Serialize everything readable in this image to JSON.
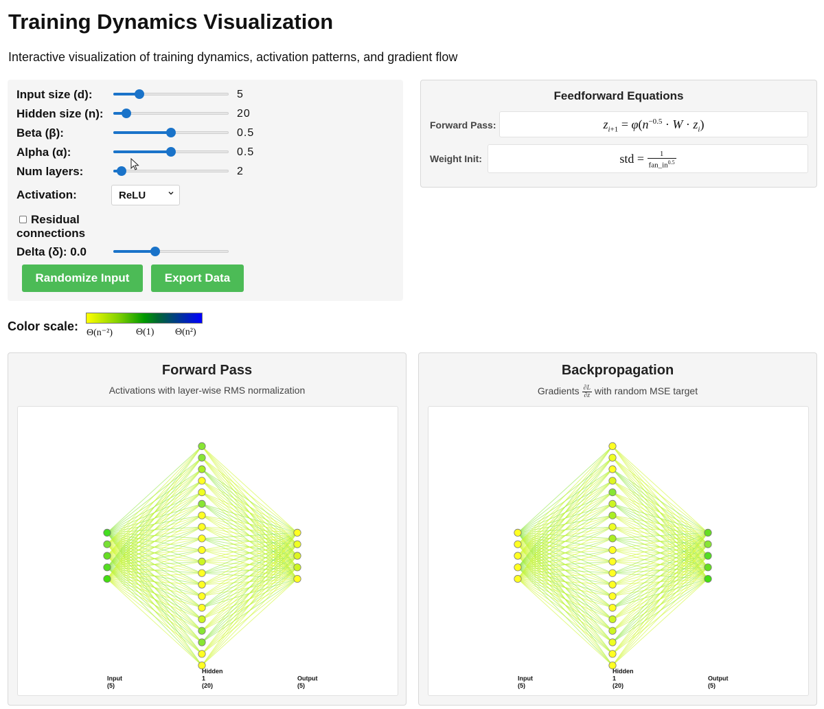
{
  "title": "Training Dynamics Visualization",
  "subtitle": "Interactive visualization of training dynamics, activation patterns, and gradient flow",
  "controls": {
    "sliders": [
      {
        "label": "Input size (d):",
        "value": "5",
        "fraction": 0.2
      },
      {
        "label": "Hidden size (n):",
        "value": "20",
        "fraction": 0.08
      },
      {
        "label": "Beta (β):",
        "value": "0.5",
        "fraction": 0.5
      },
      {
        "label": "Alpha (α):",
        "value": "0.5",
        "fraction": 0.5
      },
      {
        "label": "Num layers:",
        "value": "2",
        "fraction": 0.03
      }
    ],
    "activation_label": "Activation:",
    "activation_value": "ReLU",
    "residual_label": "Residual connections",
    "residual_checked": false,
    "delta_label": "Delta (δ): 0.0",
    "delta_fraction": 0.35,
    "randomize_button": "Randomize Input",
    "export_button": "Export Data"
  },
  "equations": {
    "title": "Feedforward Equations",
    "forward_label": "Forward Pass:",
    "weight_label": "Weight Init:"
  },
  "color_scale": {
    "label": "Color scale:",
    "ticks": [
      "Θ(n⁻²)",
      "Θ(1)",
      "Θ(n²)"
    ],
    "colors": [
      "#ffff00",
      "#009900",
      "#0000ff"
    ]
  },
  "forward_panel": {
    "title": "Forward Pass",
    "subtitle": "Activations with layer-wise RMS normalization",
    "layers": [
      {
        "label": "Input",
        "count_label": "(5)",
        "count": 5,
        "colors": [
          "#44dd22",
          "#77e033",
          "#66dd22",
          "#55dd22",
          "#44dd11"
        ]
      },
      {
        "label": "Hidden",
        "sub_label": "1",
        "count_label": "(20)",
        "count": 20,
        "colors": [
          "#88e533",
          "#88e533",
          "#aaee22",
          "#ffff22",
          "#eeff22",
          "#88e533",
          "#ffff22",
          "#ffff22",
          "#ffff22",
          "#ffff22",
          "#ccf522",
          "#ffff22",
          "#ffff22",
          "#ffff22",
          "#ffff22",
          "#ccf522",
          "#88e533",
          "#88e533",
          "#ffff22",
          "#ffff22"
        ]
      },
      {
        "label": "Output",
        "count_label": "(5)",
        "count": 5,
        "colors": [
          "#ffff22",
          "#eeff22",
          "#ddf522",
          "#ccf522",
          "#ffff22"
        ]
      }
    ]
  },
  "backward_panel": {
    "title": "Backpropagation",
    "subtitle_prefix": "Gradients",
    "subtitle_suffix": "with random MSE target",
    "layers": [
      {
        "label": "Input",
        "count_label": "(5)",
        "count": 5,
        "colors": [
          "#ffff22",
          "#ffff22",
          "#ffff22",
          "#ffff22",
          "#ffff22"
        ]
      },
      {
        "label": "Hidden",
        "sub_label": "1",
        "count_label": "(20)",
        "count": 20,
        "colors": [
          "#ffff22",
          "#eeff22",
          "#ffff22",
          "#ddf522",
          "#88e533",
          "#ccf522",
          "#aaee22",
          "#eeff22",
          "#aaee22",
          "#ffff22",
          "#ffff22",
          "#ffff22",
          "#ffff22",
          "#ffff22",
          "#ffff22",
          "#ccf522",
          "#ccf522",
          "#eeff22",
          "#ffff22",
          "#ffff22"
        ]
      },
      {
        "label": "Output",
        "count_label": "(5)",
        "count": 5,
        "colors": [
          "#66dd22",
          "#88e533",
          "#55dd22",
          "#66dd22",
          "#44dd11"
        ]
      }
    ]
  }
}
